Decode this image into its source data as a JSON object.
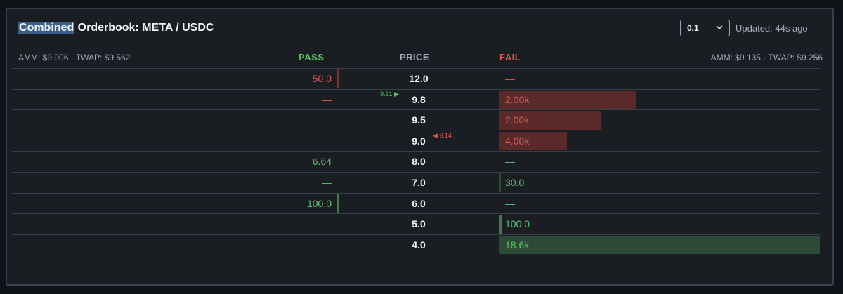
{
  "header": {
    "title_highlight": "Combined",
    "title_rest": " Orderbook: META / USDC",
    "tick_select": "0.1",
    "updated": "Updated: 44s ago"
  },
  "stats": {
    "pass": "AMM: $9.906 · TWAP: $9.562",
    "fail": "AMM: $9.135 · TWAP: $9.256"
  },
  "columns": {
    "pass": "PASS",
    "price": "PRICE",
    "fail": "FAIL"
  },
  "markers": {
    "pass_twap": "9.91 ▶",
    "fail_twap": "◀ 9.14"
  },
  "rows": [
    {
      "pass": "50.0",
      "price": "12.0",
      "fail": "—"
    },
    {
      "pass": "—",
      "price": "9.8",
      "fail": "2.00k"
    },
    {
      "pass": "—",
      "price": "9.5",
      "fail": "2.00k"
    },
    {
      "pass": "—",
      "price": "9.0",
      "fail": "4.00k"
    },
    {
      "pass": "6.64",
      "price": "8.0",
      "fail": "—"
    },
    {
      "pass": "—",
      "price": "7.0",
      "fail": "30.0"
    },
    {
      "pass": "100.0",
      "price": "6.0",
      "fail": "—"
    },
    {
      "pass": "—",
      "price": "5.0",
      "fail": "100.0"
    },
    {
      "pass": "—",
      "price": "4.0",
      "fail": "18.6k"
    }
  ],
  "colors": {
    "pass": "#5cc26a",
    "fail": "#e0574f",
    "fail_bar": "#5a2a2a",
    "pass_bar": "#2d4a36"
  }
}
